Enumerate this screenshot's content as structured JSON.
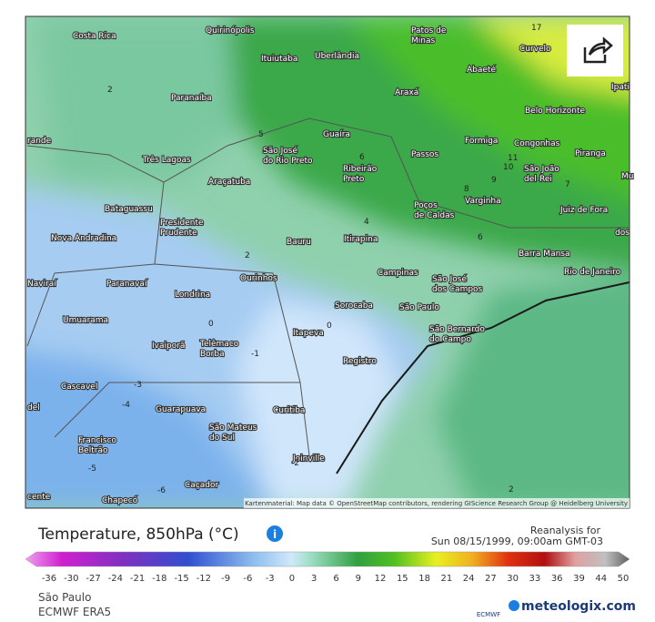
{
  "map": {
    "cities": [
      [
        "Costa Rica"
      ],
      [
        "Quirinópolis"
      ],
      [
        "Patos de",
        "Minas"
      ],
      [
        "Ituiutaba"
      ],
      [
        "Uberlândia"
      ],
      [
        "Araxá"
      ],
      [
        "Abaeté"
      ],
      [
        "Curvelo"
      ],
      [
        "Paranaíba"
      ],
      [
        "Ipati"
      ],
      [
        "Belo Horizonte"
      ],
      [
        "Guaíra"
      ],
      [
        "Formiga"
      ],
      [
        "Congonhas"
      ],
      [
        "São José",
        "do Rio Preto"
      ],
      [
        "Três Lagoas"
      ],
      [
        "Passos"
      ],
      [
        "Piranga"
      ],
      [
        "Ribeirão",
        "Preto"
      ],
      [
        "São João",
        "del-Rei"
      ],
      [
        "Araçatuba"
      ],
      [
        "Varginha"
      ],
      [
        "Poços",
        "de Caldas"
      ],
      [
        "Juiz de Fora"
      ],
      [
        "Bataguassu"
      ],
      [
        "Presidente",
        "Prudente"
      ],
      [
        "Nova Andradina"
      ],
      [
        "Bauru"
      ],
      [
        "Itirapina"
      ],
      [
        "Barra Mansa"
      ],
      [
        "Campinas"
      ],
      [
        "Ourinhos"
      ],
      [
        "São José",
        "dos Campos"
      ],
      [
        "Rio de Janeiro"
      ],
      [
        "Paranavaí"
      ],
      [
        "Naviraí"
      ],
      [
        "Londrina"
      ],
      [
        "Sorocaba"
      ],
      [
        "São Paulo"
      ],
      [
        "Umuarama"
      ],
      [
        "São Bernardo",
        "do Campo"
      ],
      [
        "Itapeva"
      ],
      [
        "Ivaiporã"
      ],
      [
        "Telêmaco",
        "Borba"
      ],
      [
        "Registro"
      ],
      [
        "Cascavel"
      ],
      [
        "Guarapuava"
      ],
      [
        "Curitiba"
      ],
      [
        "São Mateus",
        "do Sul"
      ],
      [
        "Francisco",
        "Beltrão"
      ],
      [
        "Joinville"
      ],
      [
        "Caçador"
      ],
      [
        "Chapecó"
      ],
      [
        "rande"
      ],
      [
        "del"
      ],
      [
        "cente"
      ],
      [
        "dos"
      ],
      [
        "Mu"
      ]
    ],
    "isolines": [
      "2",
      "5",
      "6",
      "4",
      "2",
      "6",
      "8",
      "9",
      "10",
      "11",
      "7",
      "0",
      "0",
      "-1",
      "-3",
      "-4",
      "-5",
      "-2",
      "2",
      "-6",
      "17"
    ],
    "attribution": "Kartenmaterial: Map data © OpenStreetMap contributors, rendering GIScience Research Group @ Heidelberg University"
  },
  "legend": {
    "title": "Temperature, 850hPa (°C)",
    "reanalysis": "Reanalysis for",
    "date": "Sun 08/15/1999, 09:00am GMT-03",
    "ticks": [
      -36,
      -30,
      -27,
      -24,
      -21,
      -18,
      -15,
      -12,
      -9,
      -6,
      -3,
      0,
      3,
      6,
      9,
      12,
      15,
      18,
      21,
      24,
      27,
      30,
      33,
      36,
      39,
      44,
      50
    ],
    "location": "São Paulo",
    "model": "ECMWF ERA5",
    "ecmwf": "ECMWF",
    "brand": "meteologix.com"
  }
}
